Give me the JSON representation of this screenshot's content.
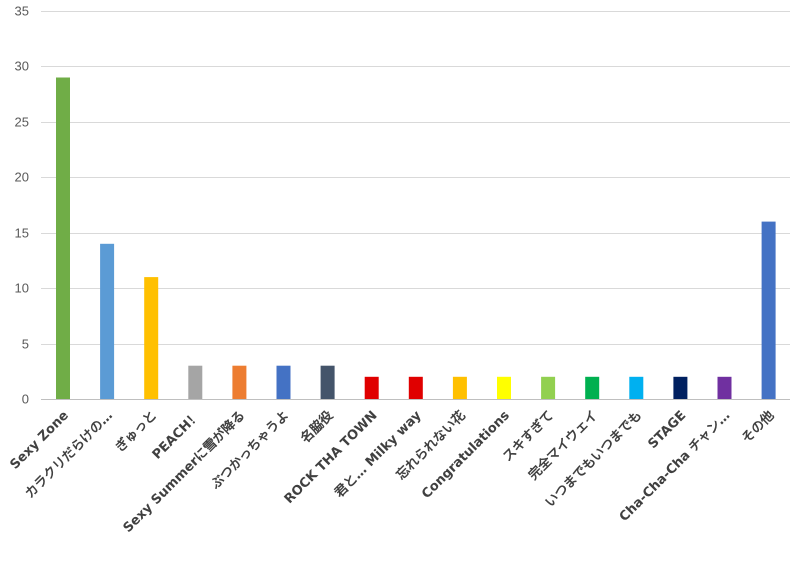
{
  "chart_data": {
    "type": "bar",
    "categories": [
      "Sexy Zone",
      "カラクリだらけの…",
      "ぎゅっと",
      "PEACH！",
      "Sexy Summerに雪が降る",
      "ぶつかっちゃうよ",
      "名脇役",
      "ROCK THA TOWN",
      "君と… Milky way",
      "忘れられない花",
      "Congratulations",
      "スキすぎて",
      "完全マイウェイ",
      "いつまでもいつまでも",
      "STAGE",
      "Cha-Cha-Cha チャン…",
      "その他"
    ],
    "values": [
      29,
      14,
      11,
      3,
      3,
      3,
      3,
      2,
      2,
      2,
      2,
      2,
      2,
      2,
      2,
      2,
      16
    ],
    "colors": [
      "#70ad47",
      "#5b9bd5",
      "#ffc000",
      "#a5a5a5",
      "#ed7d31",
      "#4472c4",
      "#44546a",
      "#e00000",
      "#e00000",
      "#ffc000",
      "#ffff00",
      "#92d050",
      "#00b050",
      "#00b0f0",
      "#002060",
      "#7030a0",
      "#4472c4"
    ],
    "ylim": [
      0,
      35
    ],
    "yticks": [
      0,
      5,
      10,
      15,
      20,
      25,
      30,
      35
    ],
    "grid": true,
    "legend": "none",
    "title": "",
    "xlabel": "",
    "ylabel": ""
  }
}
